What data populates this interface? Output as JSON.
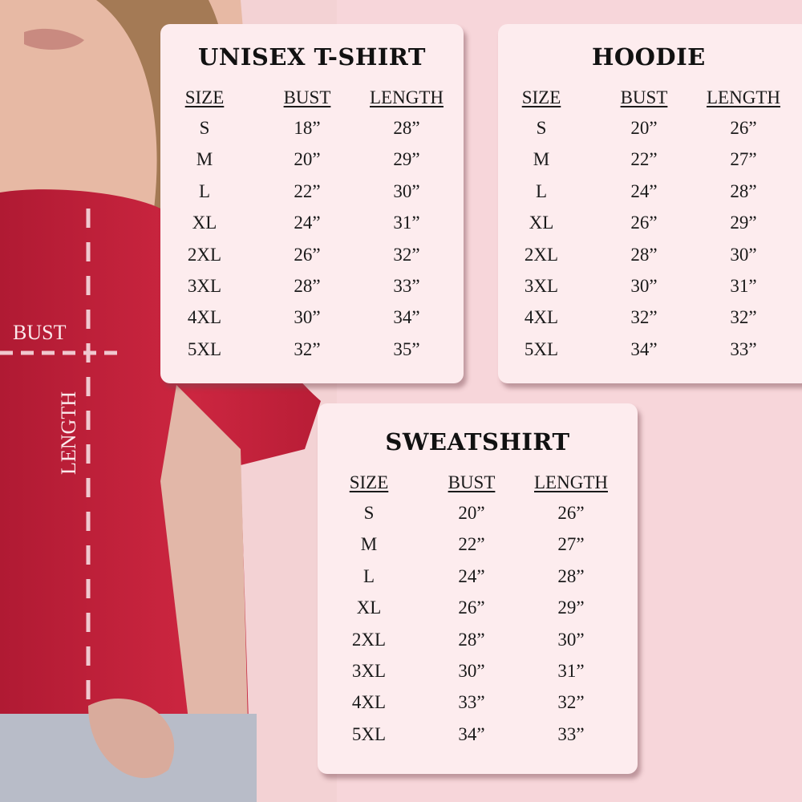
{
  "measure_labels": {
    "bust": "BUST",
    "length": "LENGTH"
  },
  "colors": {
    "background": "#f7d6da",
    "card": "#fdecee",
    "shirt": "#c21f3a"
  },
  "charts": [
    {
      "title": "UNISEX T-SHIRT",
      "headers": [
        "SIZE",
        "BUST",
        "LENGTH"
      ],
      "rows": [
        [
          "S",
          "18”",
          "28”"
        ],
        [
          "M",
          "20”",
          "29”"
        ],
        [
          "L",
          "22”",
          "30”"
        ],
        [
          "XL",
          "24”",
          "31”"
        ],
        [
          "2XL",
          "26”",
          "32”"
        ],
        [
          "3XL",
          "28”",
          "33”"
        ],
        [
          "4XL",
          "30”",
          "34”"
        ],
        [
          "5XL",
          "32”",
          "35”"
        ]
      ]
    },
    {
      "title": "HOODIE",
      "headers": [
        "SIZE",
        "BUST",
        "LENGTH"
      ],
      "rows": [
        [
          "S",
          "20”",
          "26”"
        ],
        [
          "M",
          "22”",
          "27”"
        ],
        [
          "L",
          "24”",
          "28”"
        ],
        [
          "XL",
          "26”",
          "29”"
        ],
        [
          "2XL",
          "28”",
          "30”"
        ],
        [
          "3XL",
          "30”",
          "31”"
        ],
        [
          "4XL",
          "32”",
          "32”"
        ],
        [
          "5XL",
          "34”",
          "33”"
        ]
      ]
    },
    {
      "title": "SWEATSHIRT",
      "headers": [
        "SIZE",
        "BUST",
        "LENGTH"
      ],
      "rows": [
        [
          "S",
          "20”",
          "26”"
        ],
        [
          "M",
          "22”",
          "27”"
        ],
        [
          "L",
          "24”",
          "28”"
        ],
        [
          "XL",
          "26”",
          "29”"
        ],
        [
          "2XL",
          "28”",
          "30”"
        ],
        [
          "3XL",
          "30”",
          "31”"
        ],
        [
          "4XL",
          "33”",
          "32”"
        ],
        [
          "5XL",
          "34”",
          "33”"
        ]
      ]
    }
  ]
}
